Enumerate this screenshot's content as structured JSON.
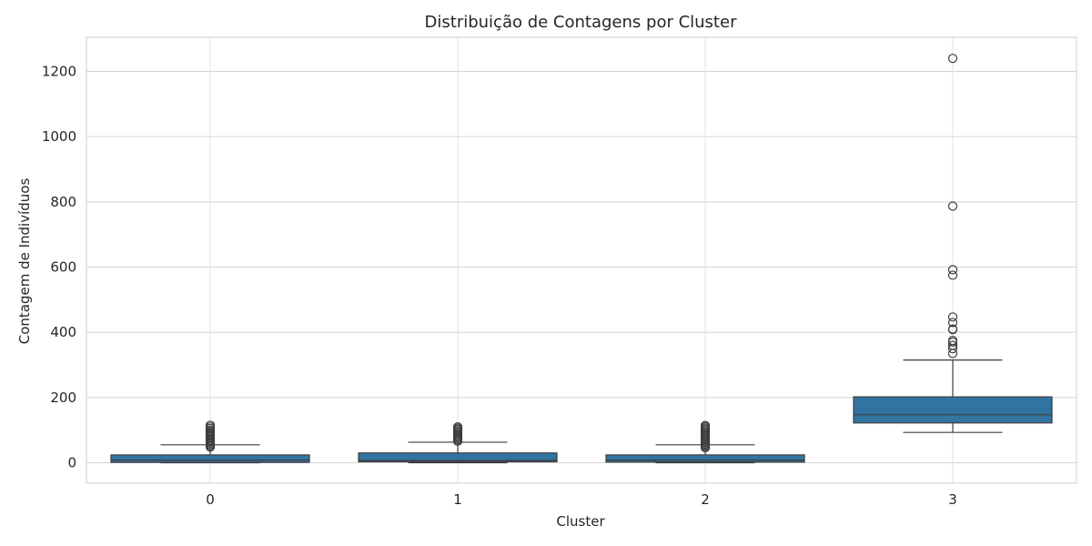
{
  "chart_data": {
    "type": "boxplot",
    "title": "Distribuição de Contagens por Cluster",
    "xlabel": "Cluster",
    "ylabel": "Contagem de Indivíduos",
    "ylim": [
      -60,
      1300
    ],
    "yticks": [
      0,
      200,
      400,
      600,
      800,
      1000,
      1200
    ],
    "grid": true,
    "box_color": "#3274a1",
    "categories": [
      "0",
      "1",
      "2",
      "3"
    ],
    "boxes": [
      {
        "cluster": "0",
        "whisker_low": 0,
        "q1": 1,
        "median": 8,
        "q3": 24,
        "whisker_high": 55,
        "outliers": [
          48,
          52,
          56,
          60,
          64,
          68,
          72,
          76,
          80,
          84,
          88,
          92,
          96,
          100,
          105,
          110,
          115
        ]
      },
      {
        "cluster": "1",
        "whisker_low": 0,
        "q1": 3,
        "median": 7,
        "q3": 30,
        "whisker_high": 63,
        "outliers": [
          66,
          70,
          74,
          78,
          82,
          86,
          90,
          94,
          98,
          102,
          106,
          110
        ]
      },
      {
        "cluster": "2",
        "whisker_low": 0,
        "q1": 2,
        "median": 8,
        "q3": 24,
        "whisker_high": 55,
        "outliers": [
          46,
          50,
          54,
          58,
          62,
          66,
          70,
          74,
          78,
          82,
          86,
          90,
          94,
          98,
          102,
          106,
          110,
          114
        ]
      },
      {
        "cluster": "3",
        "whisker_low": 93,
        "q1": 122,
        "median": 147,
        "q3": 202,
        "whisker_high": 315,
        "outliers": [
          335,
          350,
          360,
          370,
          375,
          408,
          410,
          430,
          447,
          575,
          592,
          787,
          1240
        ]
      }
    ]
  }
}
